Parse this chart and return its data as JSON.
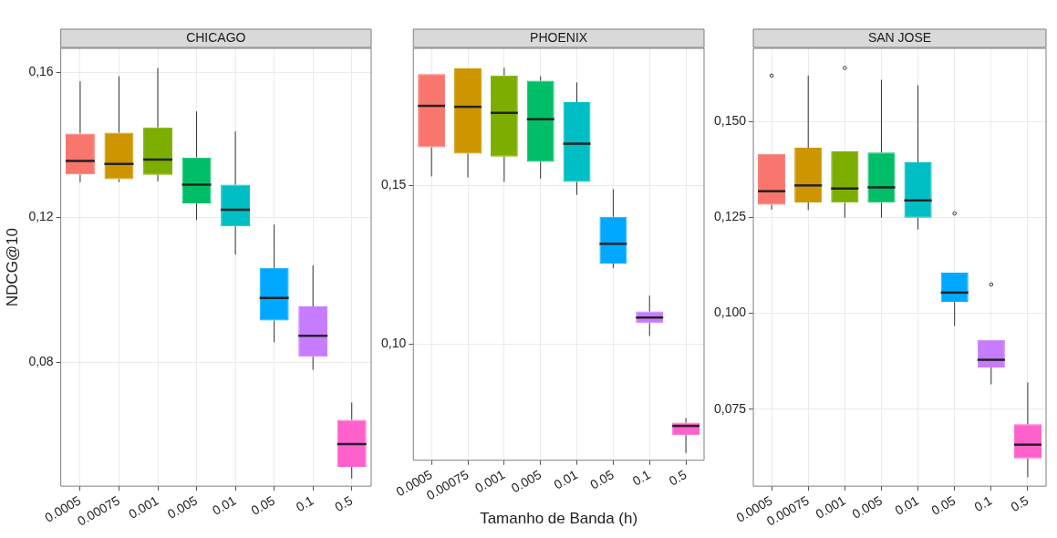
{
  "chart_data": [
    {
      "type": "box",
      "title": "CHICAGO",
      "ylabel": "NDCG@10",
      "categories": [
        "0.0005",
        "0.00075",
        "0.001",
        "0.005",
        "0.01",
        "0.05",
        "0.1",
        "0.5"
      ],
      "colors": [
        "#f8766d",
        "#cd9600",
        "#7cae00",
        "#00be67",
        "#00bfc4",
        "#00a9ff",
        "#c77cff",
        "#ff61cc"
      ],
      "boxes": [
        {
          "low": 0.1297,
          "q1": 0.1318,
          "median": 0.1355,
          "q3": 0.1431,
          "high": 0.1575
        },
        {
          "low": 0.1297,
          "q1": 0.1305,
          "median": 0.1347,
          "q3": 0.1433,
          "high": 0.1589
        },
        {
          "low": 0.1299,
          "q1": 0.1317,
          "median": 0.1359,
          "q3": 0.1448,
          "high": 0.1612
        },
        {
          "low": 0.1192,
          "q1": 0.1238,
          "median": 0.129,
          "q3": 0.1365,
          "high": 0.1492
        },
        {
          "low": 0.1097,
          "q1": 0.1175,
          "median": 0.1221,
          "q3": 0.129,
          "high": 0.1437
        },
        {
          "low": 0.0855,
          "q1": 0.0915,
          "median": 0.0977,
          "q3": 0.106,
          "high": 0.118
        },
        {
          "low": 0.0779,
          "q1": 0.0815,
          "median": 0.0873,
          "q3": 0.0954,
          "high": 0.1067
        },
        {
          "low": 0.0479,
          "q1": 0.0511,
          "median": 0.0574,
          "q3": 0.0641,
          "high": 0.0689
        }
      ],
      "ylim": [
        0.0458,
        0.1666
      ],
      "yticks": [
        {
          "value": 0.08,
          "label": "0,08"
        },
        {
          "value": 0.12,
          "label": "0,12"
        },
        {
          "value": 0.16,
          "label": "0,16"
        }
      ],
      "grid": true
    },
    {
      "type": "box",
      "title": "PHOENIX",
      "xlabel": "Tamanho de Banda (h)",
      "categories": [
        "0.0005",
        "0.00075",
        "0.001",
        "0.005",
        "0.01",
        "0.05",
        "0.1",
        "0.5"
      ],
      "colors": [
        "#f8766d",
        "#cd9600",
        "#7cae00",
        "#00be67",
        "#00bfc4",
        "#00a9ff",
        "#c77cff",
        "#ff61cc"
      ],
      "boxes": [
        {
          "low": 0.1528,
          "q1": 0.162,
          "median": 0.175,
          "q3": 0.185,
          "high": 0.185
        },
        {
          "low": 0.1525,
          "q1": 0.16,
          "median": 0.1747,
          "q3": 0.1868,
          "high": 0.1868
        },
        {
          "low": 0.1511,
          "q1": 0.159,
          "median": 0.1728,
          "q3": 0.1846,
          "high": 0.187
        },
        {
          "low": 0.1521,
          "q1": 0.1574,
          "median": 0.1708,
          "q3": 0.1829,
          "high": 0.1843
        },
        {
          "low": 0.147,
          "q1": 0.1511,
          "median": 0.1631,
          "q3": 0.1762,
          "high": 0.1824
        },
        {
          "low": 0.124,
          "q1": 0.1254,
          "median": 0.1316,
          "q3": 0.1401,
          "high": 0.1488
        },
        {
          "low": 0.1026,
          "q1": 0.1067,
          "median": 0.1084,
          "q3": 0.1103,
          "high": 0.1153
        },
        {
          "low": 0.0658,
          "q1": 0.0714,
          "median": 0.0743,
          "q3": 0.0753,
          "high": 0.0768
        }
      ],
      "ylim": [
        0.0635,
        0.1931
      ],
      "yticks": [
        {
          "value": 0.1,
          "label": "0,10"
        },
        {
          "value": 0.15,
          "label": "0,15"
        }
      ],
      "grid": true
    },
    {
      "type": "box",
      "title": "SAN JOSE",
      "categories": [
        "0.0005",
        "0.00075",
        "0.001",
        "0.005",
        "0.01",
        "0.05",
        "0.1",
        "0.5"
      ],
      "colors": [
        "#f8766d",
        "#cd9600",
        "#7cae00",
        "#00be67",
        "#00bfc4",
        "#00a9ff",
        "#c77cff",
        "#ff61cc"
      ],
      "boxes": [
        {
          "low": 0.127,
          "q1": 0.1283,
          "median": 0.1318,
          "q3": 0.1415,
          "high": 0.1415,
          "outliers": [
            0.1619
          ]
        },
        {
          "low": 0.1269,
          "q1": 0.1289,
          "median": 0.1333,
          "q3": 0.1431,
          "high": 0.1619
        },
        {
          "low": 0.1249,
          "q1": 0.1288,
          "median": 0.1325,
          "q3": 0.1422,
          "high": 0.1422,
          "outliers": [
            0.1639
          ]
        },
        {
          "low": 0.1249,
          "q1": 0.1288,
          "median": 0.1328,
          "q3": 0.1419,
          "high": 0.1608
        },
        {
          "low": 0.1218,
          "q1": 0.1249,
          "median": 0.1294,
          "q3": 0.1393,
          "high": 0.1594
        },
        {
          "low": 0.0967,
          "q1": 0.103,
          "median": 0.1054,
          "q3": 0.1106,
          "high": 0.1106,
          "outliers": [
            0.126
          ]
        },
        {
          "low": 0.0815,
          "q1": 0.0859,
          "median": 0.0879,
          "q3": 0.0931,
          "high": 0.0931,
          "outliers": [
            0.1075
          ]
        },
        {
          "low": 0.0573,
          "q1": 0.0622,
          "median": 0.0658,
          "q3": 0.0711,
          "high": 0.082
        }
      ],
      "ylim": [
        0.055,
        0.169
      ],
      "yticks": [
        {
          "value": 0.075,
          "label": "0,075"
        },
        {
          "value": 0.1,
          "label": "0,100"
        },
        {
          "value": 0.125,
          "label": "0,125"
        },
        {
          "value": 0.15,
          "label": "0,150"
        }
      ],
      "grid": true
    }
  ]
}
